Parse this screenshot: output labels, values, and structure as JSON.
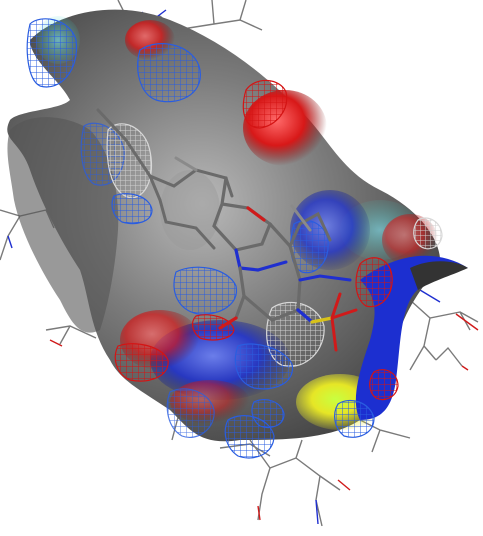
{
  "viewer": {
    "background": "#ffffff",
    "surface_colors": {
      "neutral": "#6f6f6f",
      "negative": "#d81818",
      "positive": "#1c2fd0",
      "hydrophobic": "#e6e626",
      "hbond_acceptor": "#2fd0c0"
    },
    "mesh_colors": {
      "blue_contour": "#2a5de0",
      "red_contour": "#d41414",
      "grey_contour": "#d8d8d8"
    },
    "atom_colors": {
      "carbon": "#7a7a7a",
      "nitrogen": "#1f2fd0",
      "oxygen": "#d01a1a",
      "sulfur": "#d8c21a"
    },
    "icons": [
      "molecular-surface",
      "contour-mesh",
      "ligand-stick-model",
      "protein-residue-lines"
    ]
  }
}
